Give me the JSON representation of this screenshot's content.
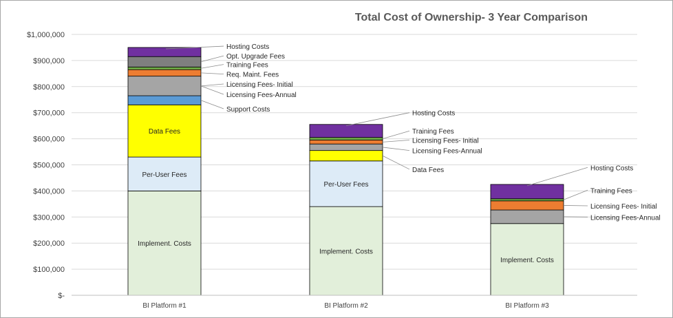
{
  "chart_data": {
    "type": "bar",
    "stacked": true,
    "title": "Total Cost of Ownership- 3 Year Comparison",
    "xlabel": "",
    "ylabel": "",
    "ylim": [
      0,
      1000000
    ],
    "yticks": [
      {
        "value": 0,
        "label": "$-"
      },
      {
        "value": 100000,
        "label": "$100,000"
      },
      {
        "value": 200000,
        "label": "$200,000"
      },
      {
        "value": 300000,
        "label": "$300,000"
      },
      {
        "value": 400000,
        "label": "$400,000"
      },
      {
        "value": 500000,
        "label": "$500,000"
      },
      {
        "value": 600000,
        "label": "$600,000"
      },
      {
        "value": 700000,
        "label": "$700,000"
      },
      {
        "value": 800000,
        "label": "$800,000"
      },
      {
        "value": 900000,
        "label": "$900,000"
      },
      {
        "value": 1000000,
        "label": "$1,000,000"
      }
    ],
    "grid": true,
    "legend": "none",
    "categories": [
      "BI Platform #1",
      "BI Platform #2",
      "BI Platform #3"
    ],
    "series": [
      {
        "name": "Implement. Costs",
        "color": "#e2efda",
        "values": [
          400000,
          340000,
          275000
        ]
      },
      {
        "name": "Per-User Fees",
        "color": "#ddebf7",
        "values": [
          130000,
          175000,
          0
        ]
      },
      {
        "name": "Data Fees",
        "color": "#ffff00",
        "values": [
          200000,
          40000,
          0
        ]
      },
      {
        "name": "Support Costs",
        "color": "#5b9bd5",
        "values": [
          35000,
          0,
          0
        ]
      },
      {
        "name": "Licensing Fees-Annual",
        "color": "#a5a5a5",
        "values": [
          75000,
          25000,
          52000
        ]
      },
      {
        "name": "Licensing Fees- Initial",
        "color": "#ed7d31",
        "values": [
          0,
          15000,
          35000
        ]
      },
      {
        "name": "Req. Maint. Fees",
        "color": "#ed7d31",
        "values": [
          25000,
          0,
          0
        ]
      },
      {
        "name": "Training Fees",
        "color": "#70ad47",
        "values": [
          10000,
          10000,
          8000
        ]
      },
      {
        "name": "Opt. Upgrade Fees",
        "color": "#7f7f7f",
        "values": [
          40000,
          0,
          0
        ]
      },
      {
        "name": "Hosting Costs",
        "color": "#7030a0",
        "values": [
          35000,
          50000,
          55000
        ]
      }
    ],
    "segment_labels": [
      {
        "category": 0,
        "series": "Implement. Costs",
        "text": "Implement. Costs"
      },
      {
        "category": 0,
        "series": "Per-User Fees",
        "text": "Per-User Fees"
      },
      {
        "category": 0,
        "series": "Data Fees",
        "text": "Data Fees"
      },
      {
        "category": 1,
        "series": "Implement. Costs",
        "text": "Implement. Costs"
      },
      {
        "category": 1,
        "series": "Per-User Fees",
        "text": "Per-User Fees"
      },
      {
        "category": 2,
        "series": "Implement. Costs",
        "text": "Implement. Costs"
      }
    ],
    "callouts": [
      {
        "category": 0,
        "series": "Hosting Costs",
        "text": "Hosting Costs",
        "label_value": 955000
      },
      {
        "category": 0,
        "series": "Opt. Upgrade Fees",
        "text": "Opt. Upgrade Fees",
        "label_value": 918000
      },
      {
        "category": 0,
        "series": "Training Fees",
        "text": "Training Fees",
        "label_value": 885000
      },
      {
        "category": 0,
        "series": "Req. Maint. Fees",
        "text": "Req. Maint. Fees",
        "label_value": 848000
      },
      {
        "category": 0,
        "series": "Licensing Fees-Annual",
        "text": "Licensing Fees- Initial",
        "label_value": 810000
      },
      {
        "category": 0,
        "series": "Licensing Fees-Annual",
        "text": "Licensing Fees-Annual",
        "label_value": 770000
      },
      {
        "category": 0,
        "series": "Support Costs",
        "text": "Support Costs",
        "label_value": 715000
      },
      {
        "category": 1,
        "series": "Hosting Costs",
        "text": "Hosting Costs",
        "label_value": 700000
      },
      {
        "category": 1,
        "series": "Training Fees",
        "text": "Training Fees",
        "label_value": 630000
      },
      {
        "category": 1,
        "series": "Licensing Fees- Initial",
        "text": "Licensing Fees- Initial",
        "label_value": 595000
      },
      {
        "category": 1,
        "series": "Licensing Fees-Annual",
        "text": "Licensing Fees-Annual",
        "label_value": 555000
      },
      {
        "category": 1,
        "series": "Data Fees",
        "text": "Data Fees",
        "label_value": 483000
      },
      {
        "category": 2,
        "series": "Hosting Costs",
        "text": "Hosting Costs",
        "label_value": 490000
      },
      {
        "category": 2,
        "series": "Training Fees",
        "text": "Training Fees",
        "label_value": 403000
      },
      {
        "category": 2,
        "series": "Licensing Fees- Initial",
        "text": "Licensing Fees- Initial",
        "label_value": 343000
      },
      {
        "category": 2,
        "series": "Licensing Fees-Annual",
        "text": "Licensing Fees-Annual",
        "label_value": 300000
      }
    ]
  }
}
